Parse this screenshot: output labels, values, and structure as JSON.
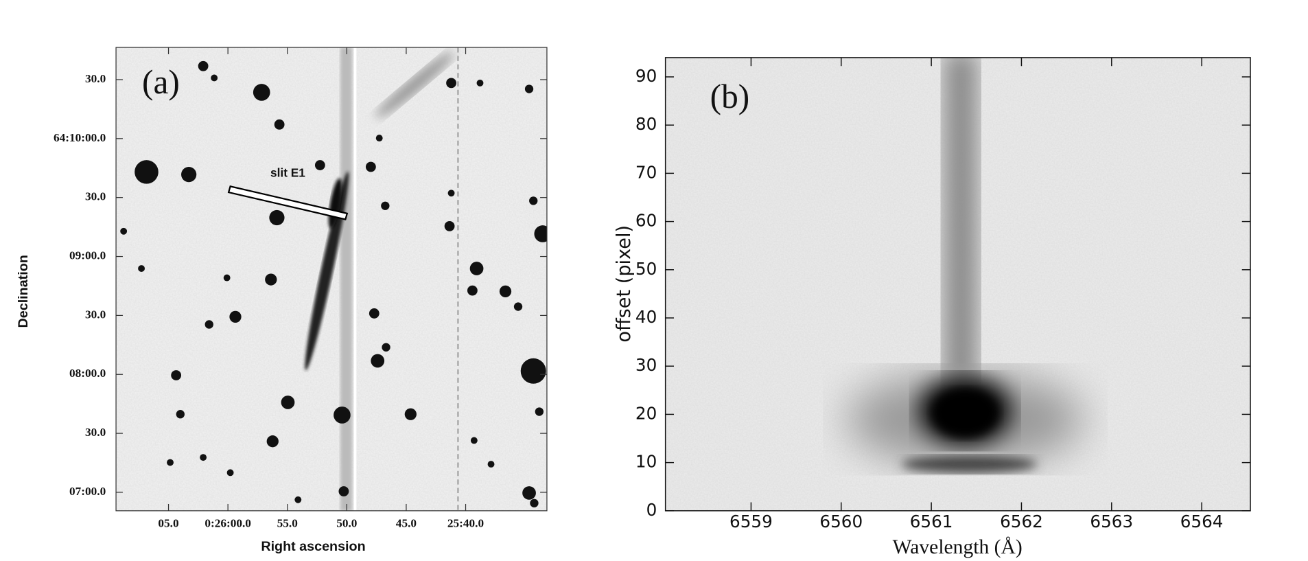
{
  "panel_a": {
    "label": "(a)",
    "slit_label": "slit E1",
    "xlabel": "Right ascension",
    "ylabel": "Declination",
    "xtick_labels": [
      "05.0",
      "0:26:00.0",
      "55.0",
      "50.0",
      "45.0",
      "25:40.0"
    ],
    "ytick_labels": [
      "30.0",
      "64:10:00.0",
      "30.0",
      "09:00.0",
      "30.0",
      "08:00.0",
      "30.0",
      "07:00.0"
    ]
  },
  "chart_data": {
    "type": "image",
    "panel_label": "(b)",
    "xlabel": "Wavelength (Å)",
    "ylabel": "offset (pixel)",
    "xlim": [
      6558.05,
      6564.54
    ],
    "ylim": [
      0,
      94
    ],
    "xticks": [
      6559,
      6560,
      6561,
      6562,
      6563,
      6564
    ],
    "yticks": [
      0,
      10,
      20,
      30,
      40,
      50,
      60,
      70,
      80,
      90
    ]
  }
}
